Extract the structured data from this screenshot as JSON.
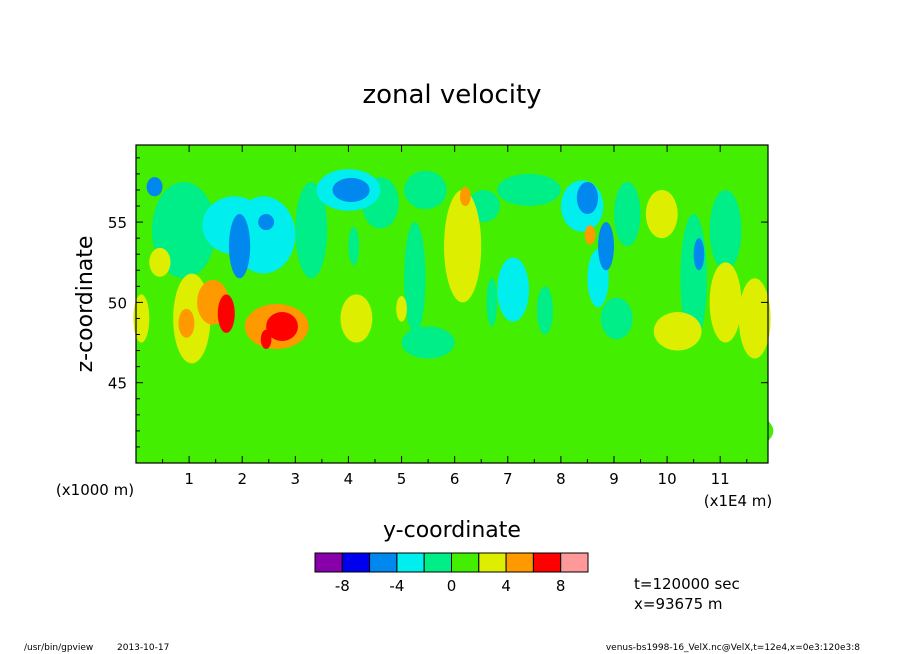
{
  "chart_data": {
    "type": "heatmap",
    "title": "zonal velocity",
    "xlabel": "y-coordinate",
    "ylabel": "z-coordinate",
    "x_unit_label": "(x1000 m)",
    "x_scale_label": "(x1E4 m)",
    "xlim": [
      0,
      11.9
    ],
    "ylim": [
      40,
      59.8
    ],
    "x_ticks": [
      "1",
      "2",
      "3",
      "4",
      "5",
      "6",
      "7",
      "8",
      "9",
      "10",
      "11"
    ],
    "y_ticks": [
      "45",
      "50",
      "55"
    ],
    "field_range": [
      -10,
      10
    ],
    "background_value": 1,
    "blobs": [
      {
        "x": 0.45,
        "y": 52.5,
        "rx": 0.2,
        "ry": 0.9,
        "v": 3
      },
      {
        "x": 0.9,
        "y": 54.5,
        "rx": 0.6,
        "ry": 3.0,
        "v": -2
      },
      {
        "x": 0.35,
        "y": 57.2,
        "rx": 0.15,
        "ry": 0.6,
        "v": -5
      },
      {
        "x": 1.05,
        "y": 49.0,
        "rx": 0.35,
        "ry": 2.8,
        "v": 3
      },
      {
        "x": 0.95,
        "y": 48.7,
        "rx": 0.15,
        "ry": 0.9,
        "v": 5
      },
      {
        "x": 1.45,
        "y": 50.0,
        "rx": 0.3,
        "ry": 1.4,
        "v": 4
      },
      {
        "x": 1.7,
        "y": 49.3,
        "rx": 0.16,
        "ry": 1.2,
        "v": 6
      },
      {
        "x": 1.85,
        "y": 54.8,
        "rx": 0.6,
        "ry": 1.8,
        "v": -4
      },
      {
        "x": 1.95,
        "y": 53.5,
        "rx": 0.2,
        "ry": 2.0,
        "v": -6
      },
      {
        "x": 2.4,
        "y": 54.2,
        "rx": 0.6,
        "ry": 2.4,
        "v": -3
      },
      {
        "x": 2.45,
        "y": 55.0,
        "rx": 0.15,
        "ry": 0.5,
        "v": -6
      },
      {
        "x": 2.65,
        "y": 48.5,
        "rx": 0.6,
        "ry": 1.4,
        "v": 4
      },
      {
        "x": 2.75,
        "y": 48.5,
        "rx": 0.3,
        "ry": 0.9,
        "v": 6
      },
      {
        "x": 2.45,
        "y": 47.7,
        "rx": 0.1,
        "ry": 0.6,
        "v": 6
      },
      {
        "x": 3.3,
        "y": 54.5,
        "rx": 0.3,
        "ry": 3.0,
        "v": -1
      },
      {
        "x": 4.0,
        "y": 57.0,
        "rx": 0.6,
        "ry": 1.3,
        "v": -3
      },
      {
        "x": 4.05,
        "y": 57.0,
        "rx": 0.35,
        "ry": 0.75,
        "v": -5
      },
      {
        "x": 4.15,
        "y": 49.0,
        "rx": 0.3,
        "ry": 1.5,
        "v": 3
      },
      {
        "x": 4.6,
        "y": 56.2,
        "rx": 0.35,
        "ry": 1.6,
        "v": -2
      },
      {
        "x": 4.1,
        "y": 53.5,
        "rx": 0.1,
        "ry": 1.2,
        "v": -2
      },
      {
        "x": 5.25,
        "y": 51.5,
        "rx": 0.2,
        "ry": 3.5,
        "v": -1
      },
      {
        "x": 5.0,
        "y": 49.6,
        "rx": 0.1,
        "ry": 0.8,
        "v": 3
      },
      {
        "x": 5.45,
        "y": 57.0,
        "rx": 0.4,
        "ry": 1.2,
        "v": -2
      },
      {
        "x": 5.5,
        "y": 47.5,
        "rx": 0.5,
        "ry": 1.0,
        "v": -1
      },
      {
        "x": 6.15,
        "y": 53.5,
        "rx": 0.35,
        "ry": 3.5,
        "v": 3
      },
      {
        "x": 6.2,
        "y": 56.6,
        "rx": 0.1,
        "ry": 0.6,
        "v": 5
      },
      {
        "x": 6.7,
        "y": 50.0,
        "rx": 0.1,
        "ry": 1.5,
        "v": -2
      },
      {
        "x": 6.55,
        "y": 56.0,
        "rx": 0.3,
        "ry": 1.0,
        "v": -1
      },
      {
        "x": 7.1,
        "y": 50.8,
        "rx": 0.3,
        "ry": 2.0,
        "v": -3
      },
      {
        "x": 7.4,
        "y": 57.0,
        "rx": 0.6,
        "ry": 1.0,
        "v": -2
      },
      {
        "x": 7.7,
        "y": 49.5,
        "rx": 0.15,
        "ry": 1.5,
        "v": -2
      },
      {
        "x": 8.4,
        "y": 56.0,
        "rx": 0.4,
        "ry": 1.6,
        "v": -3
      },
      {
        "x": 8.5,
        "y": 56.5,
        "rx": 0.2,
        "ry": 1.0,
        "v": -5
      },
      {
        "x": 8.85,
        "y": 53.5,
        "rx": 0.15,
        "ry": 1.5,
        "v": -5
      },
      {
        "x": 8.7,
        "y": 51.5,
        "rx": 0.2,
        "ry": 1.8,
        "v": -3
      },
      {
        "x": 8.55,
        "y": 54.2,
        "rx": 0.1,
        "ry": 0.6,
        "v": 5
      },
      {
        "x": 9.25,
        "y": 55.5,
        "rx": 0.25,
        "ry": 2.0,
        "v": -2
      },
      {
        "x": 9.05,
        "y": 49.0,
        "rx": 0.3,
        "ry": 1.3,
        "v": -1
      },
      {
        "x": 9.9,
        "y": 55.5,
        "rx": 0.3,
        "ry": 1.5,
        "v": 3
      },
      {
        "x": 10.2,
        "y": 48.2,
        "rx": 0.45,
        "ry": 1.2,
        "v": 3
      },
      {
        "x": 10.5,
        "y": 51.5,
        "rx": 0.25,
        "ry": 4.0,
        "v": -2
      },
      {
        "x": 10.6,
        "y": 53.0,
        "rx": 0.1,
        "ry": 1.0,
        "v": -5
      },
      {
        "x": 11.1,
        "y": 54.5,
        "rx": 0.3,
        "ry": 2.5,
        "v": -2
      },
      {
        "x": 11.1,
        "y": 50.0,
        "rx": 0.3,
        "ry": 2.5,
        "v": 3
      },
      {
        "x": 11.65,
        "y": 49.0,
        "rx": 0.3,
        "ry": 2.5,
        "v": 3
      },
      {
        "x": 0.1,
        "y": 49.0,
        "rx": 0.15,
        "ry": 1.5,
        "v": 3
      },
      {
        "x": 2.0,
        "y": 43.0,
        "rx": 2.0,
        "ry": 2.0,
        "v": 0
      },
      {
        "x": 6.0,
        "y": 41.5,
        "rx": 2.5,
        "ry": 1.5,
        "v": 0
      },
      {
        "x": 10.0,
        "y": 42.0,
        "rx": 2.0,
        "ry": 2.0,
        "v": 0
      },
      {
        "x": 4.5,
        "y": 44.5,
        "rx": 1.0,
        "ry": 1.0,
        "v": 0
      },
      {
        "x": 8.0,
        "y": 45.0,
        "rx": 1.0,
        "ry": 1.0,
        "v": 0
      }
    ],
    "colorbar": {
      "colors": [
        "#8800aa",
        "#0000ee",
        "#0088ee",
        "#00eeee",
        "#00ee88",
        "#44ee00",
        "#ddee00",
        "#ff9900",
        "#ff0000",
        "#ff9999"
      ],
      "labels": [
        "-8",
        "-4",
        "0",
        "4",
        "8"
      ]
    }
  },
  "annotations": {
    "time": "t=120000 sec",
    "position": "x=93675 m",
    "program": "/usr/bin/gpview",
    "date": "2013-10-17",
    "source": "venus-bs1998-16_VelX.nc@VelX,t=12e4,x=0e3:120e3:8"
  }
}
